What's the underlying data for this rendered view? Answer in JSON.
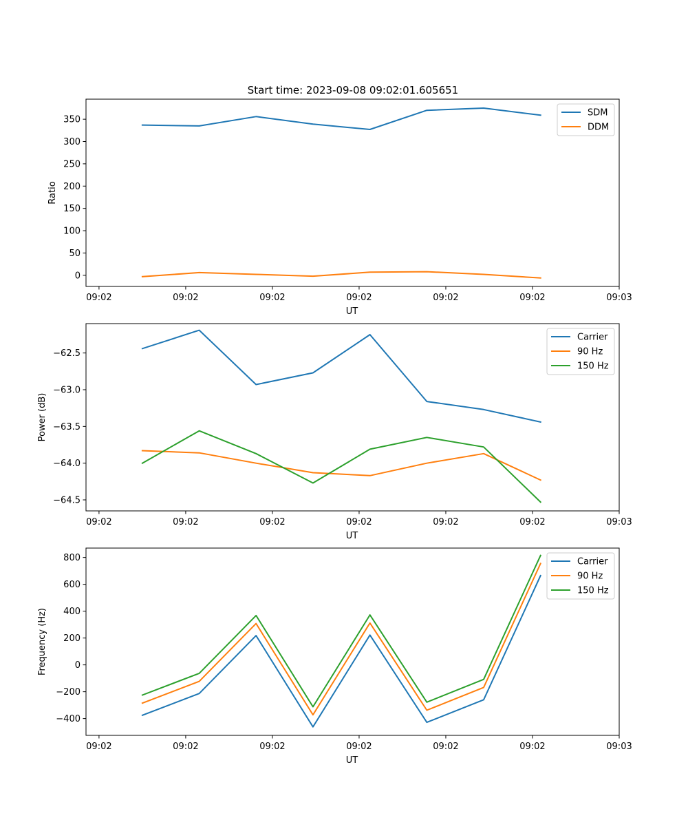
{
  "figure_title": "Start time: 2023-09-08 09:02:01.605651",
  "colors": {
    "c0": "#1f77b4",
    "c1": "#ff7f0e",
    "c2": "#2ca02c"
  },
  "chart_data": [
    {
      "type": "line",
      "title": "Start time: 2023-09-08 09:02:01.605651",
      "xlabel": "UT",
      "ylabel": "Ratio",
      "x": [
        0.5,
        1.156,
        1.812,
        2.468,
        3.125,
        3.781,
        4.437,
        5.093
      ],
      "xlim": [
        -0.15,
        6.0
      ],
      "xticks": [
        0,
        1,
        2,
        3,
        4,
        5,
        6
      ],
      "xtick_labels": [
        "09:02",
        "09:02",
        "09:02",
        "09:02",
        "09:02",
        "09:02",
        "09:03"
      ],
      "ylim": [
        -25,
        395
      ],
      "yticks": [
        0,
        50,
        100,
        150,
        200,
        250,
        300,
        350
      ],
      "ytick_labels": [
        "0",
        "50",
        "100",
        "150",
        "200",
        "250",
        "300",
        "350"
      ],
      "legend_position": "top-right",
      "series": [
        {
          "name": "SDM",
          "color": "#1f77b4",
          "values": [
            337,
            335,
            356,
            339,
            327,
            370,
            375,
            359
          ]
        },
        {
          "name": "DDM",
          "color": "#ff7f0e",
          "values": [
            -3,
            6,
            2,
            -2,
            7,
            8,
            2,
            -6
          ]
        }
      ]
    },
    {
      "type": "line",
      "title": "",
      "xlabel": "UT",
      "ylabel": "Power (dB)",
      "x": [
        0.5,
        1.156,
        1.812,
        2.468,
        3.125,
        3.781,
        4.437,
        5.093
      ],
      "xlim": [
        -0.15,
        6.0
      ],
      "xticks": [
        0,
        1,
        2,
        3,
        4,
        5,
        6
      ],
      "xtick_labels": [
        "09:02",
        "09:02",
        "09:02",
        "09:02",
        "09:02",
        "09:02",
        "09:03"
      ],
      "ylim": [
        -64.65,
        -62.1
      ],
      "yticks": [
        -64.5,
        -64.0,
        -63.5,
        -63.0,
        -62.5
      ],
      "ytick_labels": [
        "−64.5",
        "−64.0",
        "−63.5",
        "−63.0",
        "−62.5"
      ],
      "legend_position": "top-right",
      "series": [
        {
          "name": "Carrier",
          "color": "#1f77b4",
          "values": [
            -62.44,
            -62.19,
            -62.93,
            -62.77,
            -62.25,
            -63.16,
            -63.27,
            -63.44
          ]
        },
        {
          "name": "90 Hz",
          "color": "#ff7f0e",
          "values": [
            -63.83,
            -63.86,
            -64.0,
            -64.13,
            -64.17,
            -64.0,
            -63.87,
            -64.23
          ]
        },
        {
          "name": "150 Hz",
          "color": "#2ca02c",
          "values": [
            -64.0,
            -63.56,
            -63.87,
            -64.27,
            -63.81,
            -63.65,
            -63.78,
            -64.53
          ]
        }
      ]
    },
    {
      "type": "line",
      "title": "",
      "xlabel": "UT",
      "ylabel": "Frequency (Hz)",
      "x": [
        0.5,
        1.156,
        1.812,
        2.468,
        3.125,
        3.781,
        4.437,
        5.093
      ],
      "xlim": [
        -0.15,
        6.0
      ],
      "xticks": [
        0,
        1,
        2,
        3,
        4,
        5,
        6
      ],
      "xtick_labels": [
        "09:02",
        "09:02",
        "09:02",
        "09:02",
        "09:02",
        "09:02",
        "09:03"
      ],
      "ylim": [
        -525,
        870
      ],
      "yticks": [
        -400,
        -200,
        0,
        200,
        400,
        600,
        800
      ],
      "ytick_labels": [
        "−400",
        "−200",
        "0",
        "200",
        "400",
        "600",
        "800"
      ],
      "legend_position": "top-right",
      "series": [
        {
          "name": "Carrier",
          "color": "#1f77b4",
          "values": [
            -375,
            -213,
            218,
            -462,
            222,
            -428,
            -260,
            665
          ]
        },
        {
          "name": "90 Hz",
          "color": "#ff7f0e",
          "values": [
            -285,
            -123,
            308,
            -372,
            312,
            -338,
            -168,
            755
          ]
        },
        {
          "name": "150 Hz",
          "color": "#2ca02c",
          "values": [
            -225,
            -63,
            368,
            -312,
            372,
            -278,
            -108,
            815
          ]
        }
      ]
    }
  ]
}
